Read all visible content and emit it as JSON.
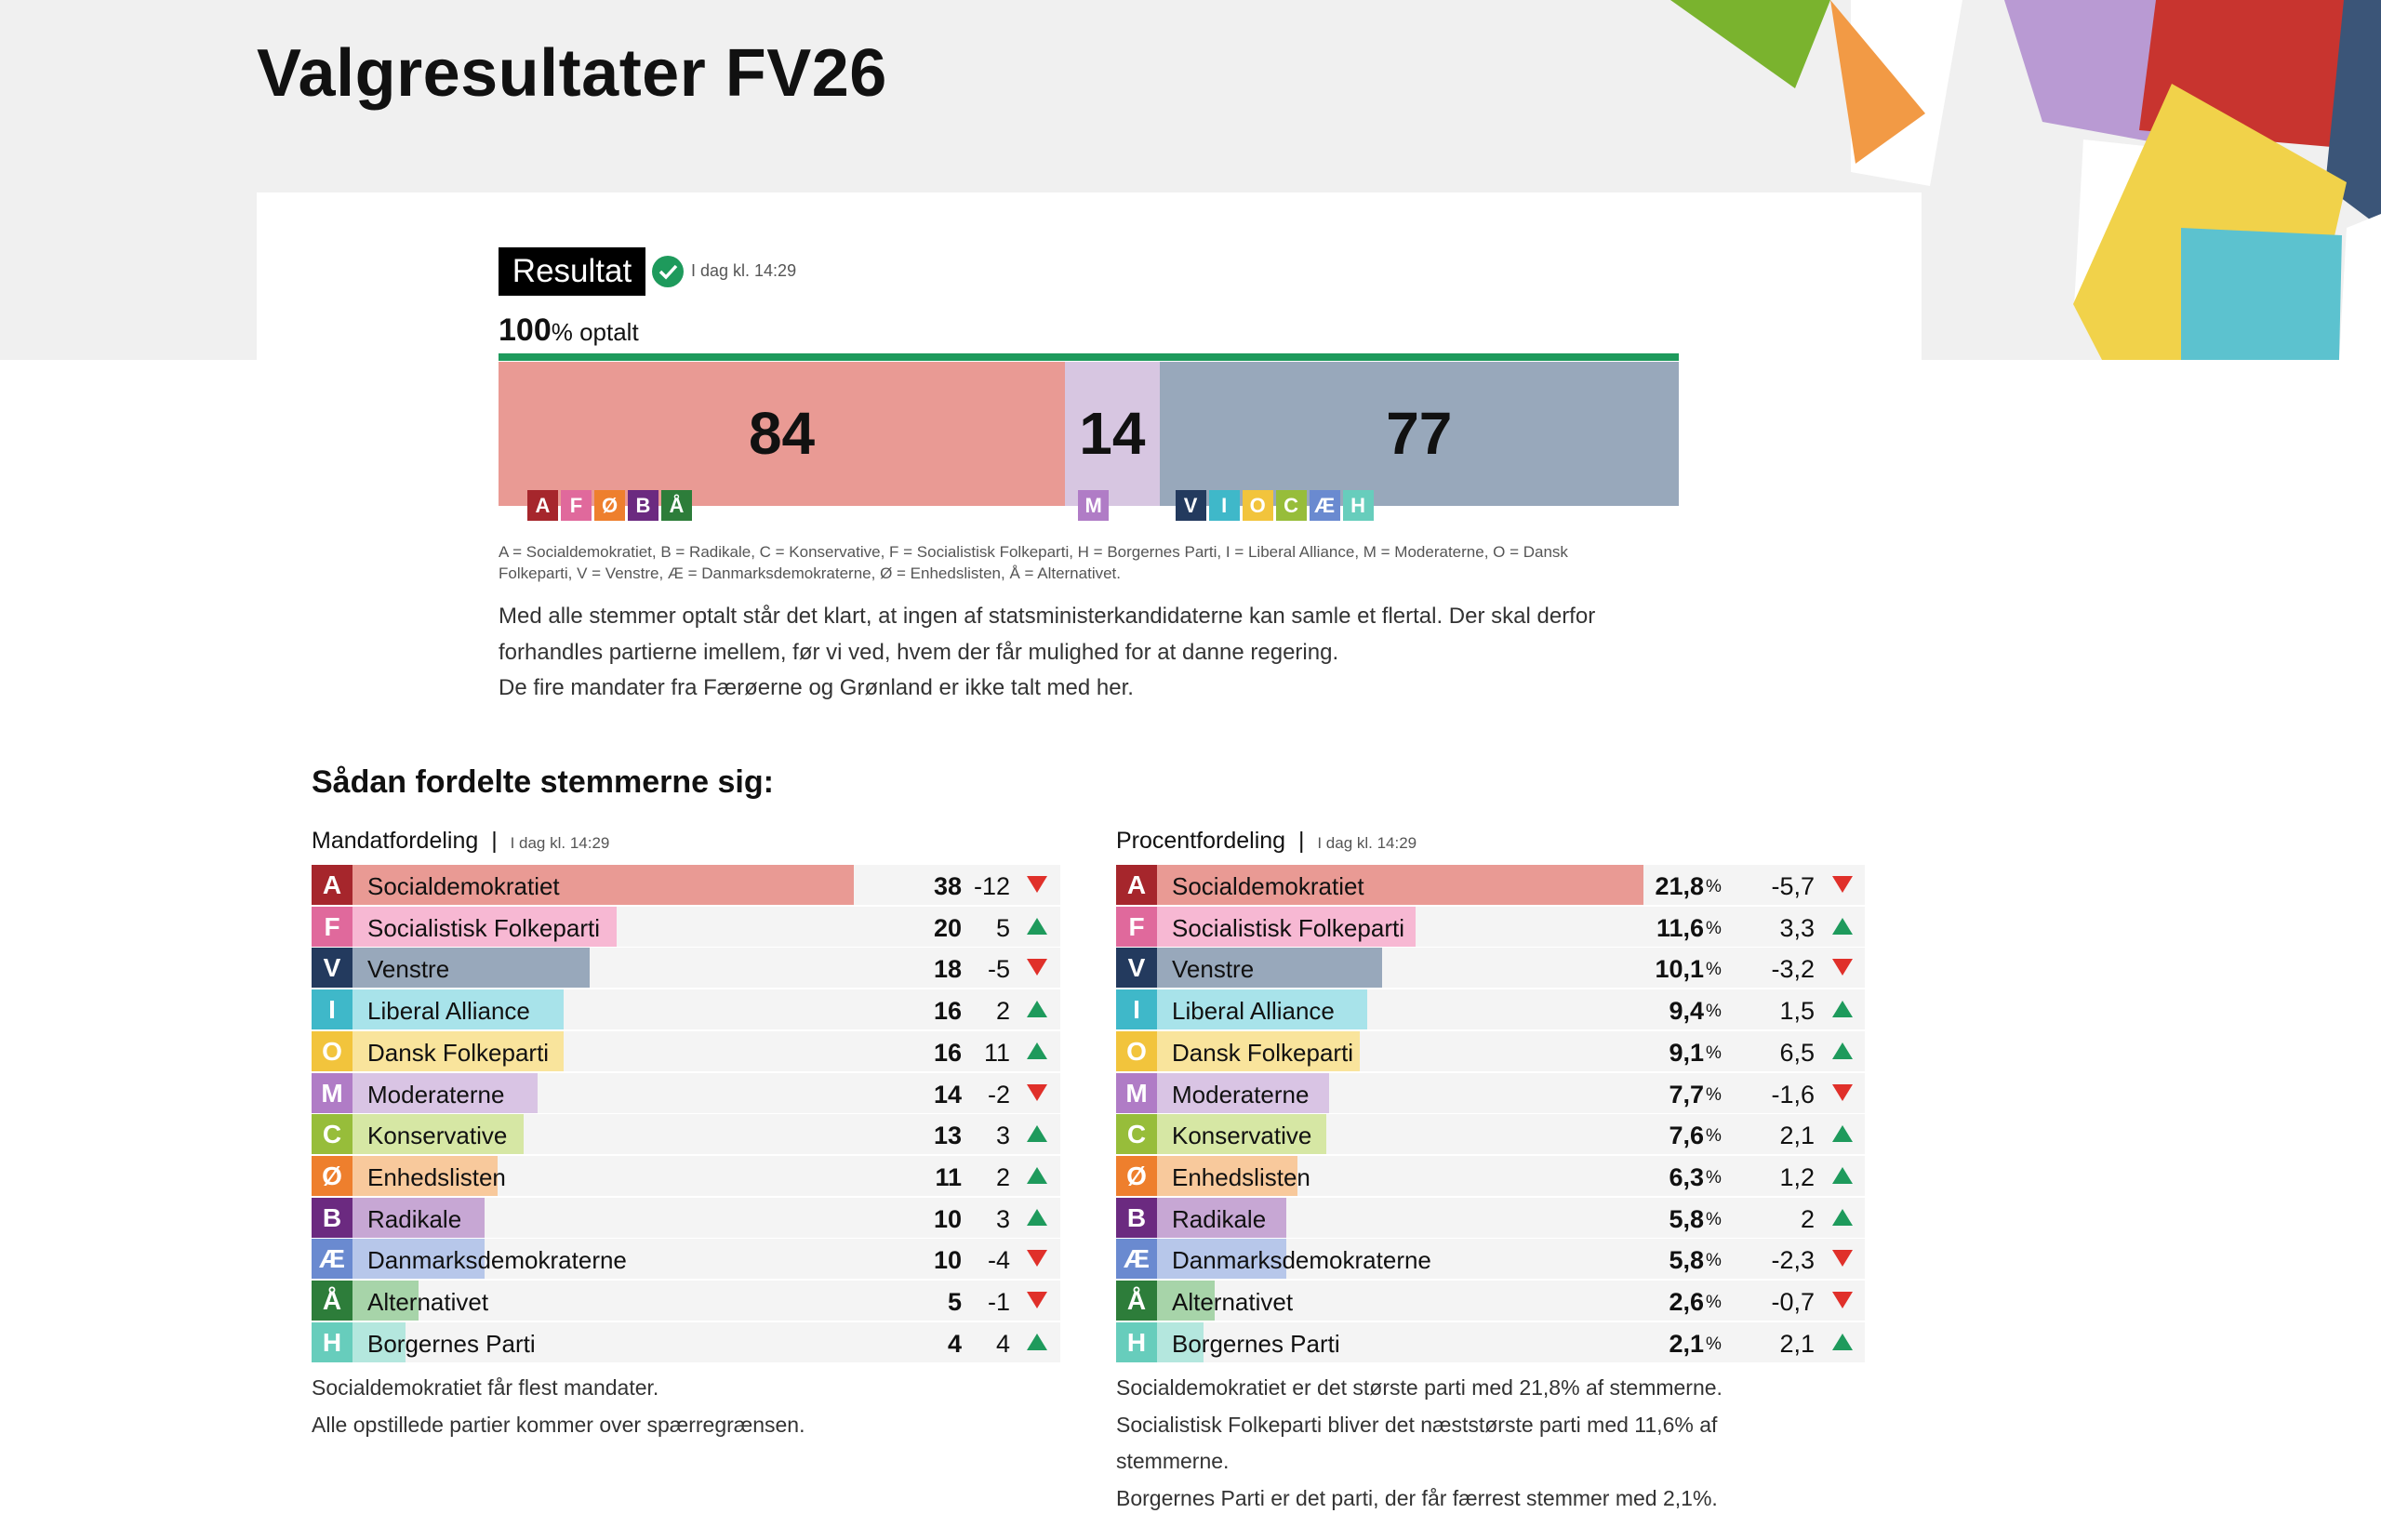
{
  "header": {
    "title": "Valgresultater FV26"
  },
  "status": {
    "badge": "Resultat",
    "time": "I dag kl. 14:29",
    "counted_value": "100",
    "counted_label": "% optalt"
  },
  "blocs": [
    {
      "seats": 84,
      "color": "#e99a94",
      "letters": [
        "A",
        "F",
        "Ø",
        "B",
        "Å"
      ]
    },
    {
      "seats": 14,
      "color": "#d7c6e1",
      "letters": [
        "M"
      ]
    },
    {
      "seats": 77,
      "color": "#98a8bb",
      "letters": [
        "V",
        "I",
        "O",
        "C",
        "Æ",
        "H"
      ]
    }
  ],
  "legend_note": "A = Socialdemokratiet, B = Radikale, C = Konservative, F = Socialistisk Folkeparti, H = Borgernes Parti, I = Liberal Alliance, M = Moderaterne, O = Dansk Folkeparti, V = Venstre, Æ = Danmarksdemokraterne, Ø = Enhedslisten, Å = Alternativet.",
  "paragraphs": [
    "Med alle stemmer optalt står det klart, at ingen af statsministerkandidaterne kan samle et flertal. Der skal derfor forhandles partierne imellem, før vi ved, hvem der får mulighed for at danne regering.",
    "De fire mandater fra Færøerne og Grønland er ikke talt med her."
  ],
  "section_title": "Sådan fordelte stemmerne sig:",
  "seats": {
    "title": "Mandatfordeling",
    "time": "I dag kl. 14:29",
    "rows": [
      {
        "letter": "A",
        "name": "Socialdemokratiet",
        "color": "#a6262c",
        "bar_color": "#e99a94",
        "value": 38,
        "change": -12
      },
      {
        "letter": "F",
        "name": "Socialistisk Folkeparti",
        "color": "#e0699c",
        "bar_color": "#f7b8d3",
        "value": 20,
        "change": 5
      },
      {
        "letter": "V",
        "name": "Venstre",
        "color": "#233a5e",
        "bar_color": "#98a8bb",
        "value": 18,
        "change": -5
      },
      {
        "letter": "I",
        "name": "Liberal Alliance",
        "color": "#3fb8c9",
        "bar_color": "#a8e3ea",
        "value": 16,
        "change": 2
      },
      {
        "letter": "O",
        "name": "Dansk Folkeparti",
        "color": "#f2c43c",
        "bar_color": "#f9e49c",
        "value": 16,
        "change": 11
      },
      {
        "letter": "M",
        "name": "Moderaterne",
        "color": "#b07cc6",
        "bar_color": "#d9c4e4",
        "value": 14,
        "change": -2
      },
      {
        "letter": "C",
        "name": "Konservative",
        "color": "#97bd3a",
        "bar_color": "#d6e7a4",
        "value": 13,
        "change": 3
      },
      {
        "letter": "Ø",
        "name": "Enhedslisten",
        "color": "#ee7f2d",
        "bar_color": "#f8c99c",
        "value": 11,
        "change": 2
      },
      {
        "letter": "B",
        "name": "Radikale",
        "color": "#6b2a80",
        "bar_color": "#c7a7d4",
        "value": 10,
        "change": 3
      },
      {
        "letter": "Æ",
        "name": "Danmarksdemokraterne",
        "color": "#6a8ad0",
        "bar_color": "#b7c7ea",
        "value": 10,
        "change": -4
      },
      {
        "letter": "Å",
        "name": "Alternativet",
        "color": "#2d7d3a",
        "bar_color": "#a7d4a9",
        "value": 5,
        "change": -1
      },
      {
        "letter": "H",
        "name": "Borgernes Parti",
        "color": "#67cdbc",
        "bar_color": "#b4e7de",
        "value": 4,
        "change": 4
      }
    ],
    "notes": [
      "Socialdemokratiet får flest mandater.",
      "Alle opstillede partier kommer over spærregrænsen."
    ]
  },
  "percent": {
    "title": "Procentfordeling",
    "time": "I dag kl. 14:29",
    "unit": "%",
    "rows": [
      {
        "letter": "A",
        "name": "Socialdemokratiet",
        "color": "#a6262c",
        "bar_color": "#e99a94",
        "value": 21.8,
        "value_label": "21,8",
        "change": -5.7,
        "change_label": "-5,7"
      },
      {
        "letter": "F",
        "name": "Socialistisk Folkeparti",
        "color": "#e0699c",
        "bar_color": "#f7b8d3",
        "value": 11.6,
        "value_label": "11,6",
        "change": 3.3,
        "change_label": "3,3"
      },
      {
        "letter": "V",
        "name": "Venstre",
        "color": "#233a5e",
        "bar_color": "#98a8bb",
        "value": 10.1,
        "value_label": "10,1",
        "change": -3.2,
        "change_label": "-3,2"
      },
      {
        "letter": "I",
        "name": "Liberal Alliance",
        "color": "#3fb8c9",
        "bar_color": "#a8e3ea",
        "value": 9.4,
        "value_label": "9,4",
        "change": 1.5,
        "change_label": "1,5"
      },
      {
        "letter": "O",
        "name": "Dansk Folkeparti",
        "color": "#f2c43c",
        "bar_color": "#f9e49c",
        "value": 9.1,
        "value_label": "9,1",
        "change": 6.5,
        "change_label": "6,5"
      },
      {
        "letter": "M",
        "name": "Moderaterne",
        "color": "#b07cc6",
        "bar_color": "#d9c4e4",
        "value": 7.7,
        "value_label": "7,7",
        "change": -1.6,
        "change_label": "-1,6"
      },
      {
        "letter": "C",
        "name": "Konservative",
        "color": "#97bd3a",
        "bar_color": "#d6e7a4",
        "value": 7.6,
        "value_label": "7,6",
        "change": 2.1,
        "change_label": "2,1"
      },
      {
        "letter": "Ø",
        "name": "Enhedslisten",
        "color": "#ee7f2d",
        "bar_color": "#f8c99c",
        "value": 6.3,
        "value_label": "6,3",
        "change": 1.2,
        "change_label": "1,2"
      },
      {
        "letter": "B",
        "name": "Radikale",
        "color": "#6b2a80",
        "bar_color": "#c7a7d4",
        "value": 5.8,
        "value_label": "5,8",
        "change": 2,
        "change_label": "2"
      },
      {
        "letter": "Æ",
        "name": "Danmarksdemokraterne",
        "color": "#6a8ad0",
        "bar_color": "#b7c7ea",
        "value": 5.8,
        "value_label": "5,8",
        "change": -2.3,
        "change_label": "-2,3"
      },
      {
        "letter": "Å",
        "name": "Alternativet",
        "color": "#2d7d3a",
        "bar_color": "#a7d4a9",
        "value": 2.6,
        "value_label": "2,6",
        "change": -0.7,
        "change_label": "-0,7"
      },
      {
        "letter": "H",
        "name": "Borgernes Parti",
        "color": "#67cdbc",
        "bar_color": "#b4e7de",
        "value": 2.1,
        "value_label": "2,1",
        "change": 2.1,
        "change_label": "2,1"
      }
    ],
    "notes": [
      "Socialdemokratiet er det største parti med 21,8% af stemmerne.",
      "Socialistisk Folkeparti bliver det næststørste parti med 11,6% af stemmerne.",
      "Borgernes Parti er det parti, der får færrest stemmer med 2,1%."
    ]
  }
}
